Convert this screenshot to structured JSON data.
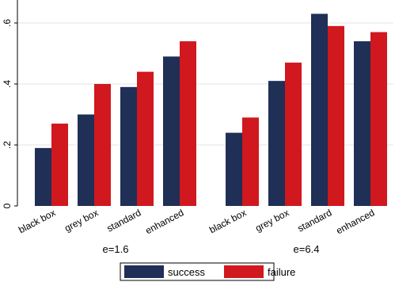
{
  "chart_data": {
    "type": "bar",
    "groups": [
      {
        "label": "e=1.6",
        "categories": [
          "black box",
          "grey box",
          "standard",
          "enhanced"
        ],
        "series": [
          {
            "name": "success",
            "values": [
              0.19,
              0.3,
              0.39,
              0.49
            ]
          },
          {
            "name": "failure",
            "values": [
              0.27,
              0.4,
              0.44,
              0.54
            ]
          }
        ]
      },
      {
        "label": "e=6.4",
        "categories": [
          "black box",
          "grey box",
          "standard",
          "enhanced"
        ],
        "series": [
          {
            "name": "success",
            "values": [
              0.24,
              0.41,
              0.63,
              0.54
            ]
          },
          {
            "name": "failure",
            "values": [
              0.29,
              0.47,
              0.59,
              0.57
            ]
          }
        ]
      }
    ],
    "y_ticks": [
      {
        "value": 0,
        "label": "0"
      },
      {
        "value": 0.2,
        "label": ".2"
      },
      {
        "value": 0.4,
        "label": ".4"
      },
      {
        "value": 0.6,
        "label": ".6"
      }
    ],
    "ylim": [
      0,
      0.65
    ],
    "grid": true,
    "legend_position": "bottom",
    "legend": [
      "success",
      "failure"
    ],
    "colors": {
      "success": "#1f2f56",
      "failure": "#d0181e",
      "grid": "#e3e3e3",
      "axis": "#000000"
    }
  }
}
